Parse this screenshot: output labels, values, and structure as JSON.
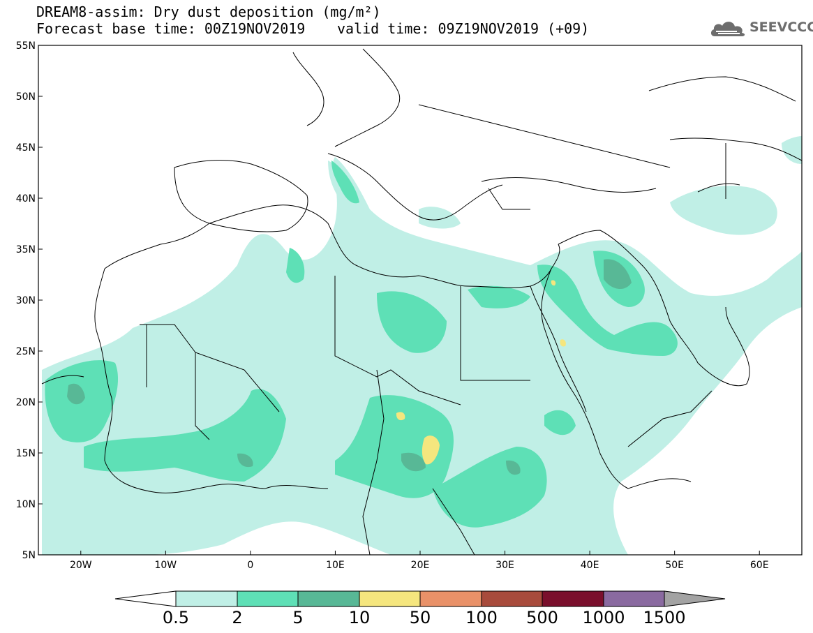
{
  "title": {
    "line1": "DREAM8-assim: Dry dust deposition (mg/m²)",
    "line2": "Forecast base time: 00Z19NOV2019",
    "valid": "valid time: 09Z19NOV2019 (+09)"
  },
  "logo": {
    "text": "SEEVCCC",
    "icon": "cloud-logo-icon",
    "color": "#6d6d6d"
  },
  "map": {
    "lon_range": [
      -25,
      65
    ],
    "lat_range": [
      5,
      55
    ],
    "lon_ticks": [
      {
        "value": -20,
        "label": "20W"
      },
      {
        "value": -10,
        "label": "10W"
      },
      {
        "value": 0,
        "label": "0"
      },
      {
        "value": 10,
        "label": "10E"
      },
      {
        "value": 20,
        "label": "20E"
      },
      {
        "value": 30,
        "label": "30E"
      },
      {
        "value": 40,
        "label": "40E"
      },
      {
        "value": 50,
        "label": "50E"
      },
      {
        "value": 60,
        "label": "60E"
      }
    ],
    "lat_ticks": [
      {
        "value": 55,
        "label": "55N"
      },
      {
        "value": 50,
        "label": "50N"
      },
      {
        "value": 45,
        "label": "45N"
      },
      {
        "value": 40,
        "label": "40N"
      },
      {
        "value": 35,
        "label": "35N"
      },
      {
        "value": 30,
        "label": "30N"
      },
      {
        "value": 25,
        "label": "25N"
      },
      {
        "value": 20,
        "label": "20N"
      },
      {
        "value": 15,
        "label": "15N"
      },
      {
        "value": 10,
        "label": "10N"
      },
      {
        "value": 5,
        "label": "5N"
      }
    ]
  },
  "colorbar": {
    "labels": [
      "0.5",
      "2",
      "5",
      "10",
      "50",
      "100",
      "500",
      "1000",
      "1500"
    ],
    "under_color": "#ffffff",
    "colors": [
      "#c0efe6",
      "#5ee0b6",
      "#58b896",
      "#f5e67e",
      "#e99168",
      "#a84b3c",
      "#7a0f2c",
      "#8a6aa0"
    ],
    "over_color": "#a3a3a3"
  },
  "dust_colors": {
    "low": "#c0efe6",
    "mid": "#5ee0b6",
    "high": "#58b896",
    "peak": "#f5e67e"
  }
}
